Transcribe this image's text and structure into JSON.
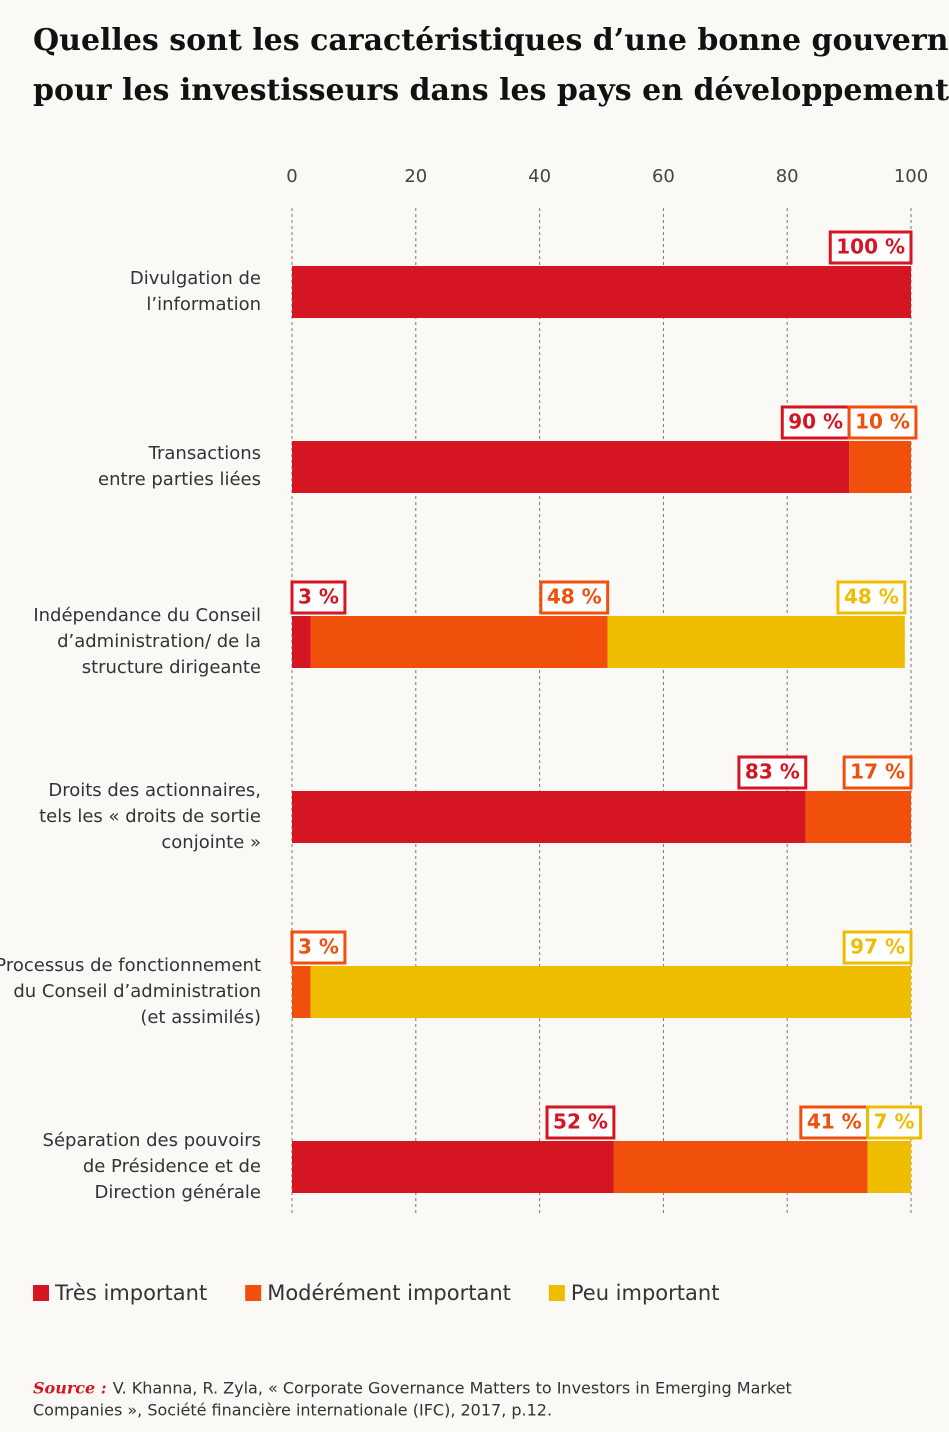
{
  "chart_data": {
    "type": "stacked_barh",
    "title": [
      "Quelles sont les caractéristiques d’une bonne gouvernance",
      "pour les investisseurs dans les pays en développement ?"
    ],
    "categories": [
      [
        "Divulgation de",
        "l’information"
      ],
      [
        "Transactions",
        "entre parties liées"
      ],
      [
        "Indépendance du Conseil",
        "d’administration/ de la",
        "structure dirigeante"
      ],
      [
        "Droits des actionnaires,",
        "tels les « droits de sortie",
        "conjointe »"
      ],
      [
        "Processus de fonctionnement",
        "du Conseil d’administration",
        "(et assimilés)"
      ],
      [
        "Séparation des pouvoirs",
        "de Présidence et de",
        "Direction générale"
      ]
    ],
    "series": [
      {
        "name": "Très important",
        "color": "#d51521",
        "values": [
          100,
          90,
          3,
          83,
          null,
          52
        ],
        "value_labels": [
          "100 %",
          "90 %",
          "3 %",
          "83 %",
          null,
          "52 %"
        ]
      },
      {
        "name": "Modérément important",
        "color": "#f04f0c",
        "values": [
          null,
          10,
          48,
          17,
          3,
          41
        ],
        "value_labels": [
          null,
          "10 %",
          "48 %",
          "17 %",
          "3 %",
          "41 %"
        ]
      },
      {
        "name": "Peu important",
        "color": "#efbd00",
        "values": [
          null,
          null,
          48,
          null,
          97,
          7
        ],
        "value_labels": [
          null,
          null,
          "48 %",
          null,
          "97 %",
          "7 %"
        ]
      }
    ],
    "xlim": [
      0,
      100
    ],
    "xticks": [
      0,
      20,
      40,
      60,
      80,
      100
    ],
    "grid": true,
    "source_label": "Source :",
    "source": [
      "V. Khanna, R. Zyla, « Corporate Governance Matters to Investors in Emerging Market",
      "Companies », Société financière internationale (IFC), 2017, p.12."
    ]
  }
}
